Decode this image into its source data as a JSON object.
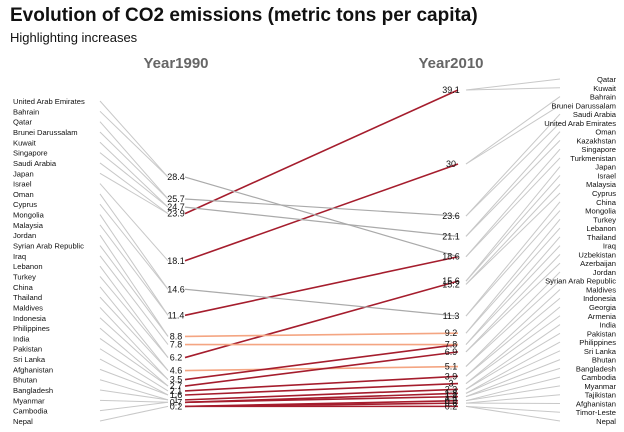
{
  "title": "Evolution of CO2 emissions (metric tons per capita)",
  "subtitle": "Highlighting increases",
  "chart_data": {
    "type": "slope",
    "title": "Evolution of CO2 emissions (metric tons per capita)",
    "subtitle": "Highlighting increases",
    "columns": [
      "Year1990",
      "Year2010"
    ],
    "ylim": [
      0,
      39.1
    ],
    "colors": {
      "decrease": "#c8c8c8",
      "increase_dark": "#a51d2d",
      "increase_light": "#f4a582",
      "decrease_strong": "#aaaaaa"
    },
    "left_value_labels": [
      "28.4",
      "25.7",
      "24.7",
      "23.9",
      "18.1",
      "14.6",
      "11.4",
      "8.8",
      "7.8",
      "6.2",
      "4.6",
      "3.5",
      "2.7",
      "2.1",
      "1.6",
      "1",
      "0.7",
      "0.2"
    ],
    "right_value_labels": [
      "39.1",
      "30",
      "23.6",
      "21.1",
      "18.6",
      "15.6",
      "15.2",
      "11.3",
      "9.2",
      "7.8",
      "6.9",
      "5.1",
      "3.9",
      "3",
      "2.3",
      "1.8",
      "1.4",
      "0.9",
      "0.6",
      "0.2"
    ],
    "left_countries": [
      "United Arab Emirates",
      "Bahrain",
      "Qatar",
      "Brunei Darussalam",
      "Kuwait",
      "Singapore",
      "Saudi Arabia",
      "Japan",
      "Israel",
      "Oman",
      "Cyprus",
      "Mongolia",
      "Malaysia",
      "Jordan",
      "Syrian Arab Republic",
      "Iraq",
      "Lebanon",
      "Turkey",
      "China",
      "Thailand",
      "Maldives",
      "Indonesia",
      "Philippines",
      "India",
      "Pakistan",
      "Sri Lanka",
      "Afghanistan",
      "Bhutan",
      "Bangladesh",
      "Myanmar",
      "Cambodia",
      "Nepal"
    ],
    "right_countries": [
      "Qatar",
      "Kuwait",
      "Bahrain",
      "Brunei Darussalam",
      "Saudi Arabia",
      "United Arab Emirates",
      "Oman",
      "Kazakhstan",
      "Singapore",
      "Turkmenistan",
      "Japan",
      "Israel",
      "Malaysia",
      "Cyprus",
      "China",
      "Mongolia",
      "Turkey",
      "Lebanon",
      "Thailand",
      "Iraq",
      "Uzbekistan",
      "Azerbaijan",
      "Jordan",
      "Syrian Arab Republic",
      "Maldives",
      "Indonesia",
      "Georgia",
      "Armenia",
      "India",
      "Pakistan",
      "Philippines",
      "Sri Lanka",
      "Bhutan",
      "Bangladesh",
      "Cambodia",
      "Myanmar",
      "Tajikistan",
      "Afghanistan",
      "Timor-Leste",
      "Nepal"
    ],
    "slopes": [
      {
        "from": 23.9,
        "to": 39.1,
        "trend": "increase"
      },
      {
        "from": 18.1,
        "to": 30,
        "trend": "increase"
      },
      {
        "from": 11.4,
        "to": 18.6,
        "trend": "increase"
      },
      {
        "from": 6.2,
        "to": 15.6,
        "trend": "increase"
      },
      {
        "from": 28.4,
        "to": 18.6,
        "trend": "decrease"
      },
      {
        "from": 25.7,
        "to": 23.6,
        "trend": "decrease"
      },
      {
        "from": 24.7,
        "to": 21.1,
        "trend": "decrease"
      },
      {
        "from": 14.6,
        "to": 11.3,
        "trend": "decrease"
      },
      {
        "from": 8.8,
        "to": 9.2,
        "trend": "increase_light"
      },
      {
        "from": 4.6,
        "to": 5.1,
        "trend": "increase_light"
      },
      {
        "from": 3.5,
        "to": 7.8,
        "trend": "increase"
      },
      {
        "from": 2.7,
        "to": 6.9,
        "trend": "increase"
      },
      {
        "from": 2.1,
        "to": 3.9,
        "trend": "increase"
      },
      {
        "from": 1.6,
        "to": 3,
        "trend": "increase"
      },
      {
        "from": 1,
        "to": 2.3,
        "trend": "increase"
      },
      {
        "from": 0.7,
        "to": 1.8,
        "trend": "increase"
      },
      {
        "from": 0.7,
        "to": 1.4,
        "trend": "increase"
      },
      {
        "from": 0.2,
        "to": 0.9,
        "trend": "increase"
      },
      {
        "from": 0.2,
        "to": 0.6,
        "trend": "increase"
      },
      {
        "from": 0.2,
        "to": 0.2,
        "trend": "increase"
      },
      {
        "from": 7.8,
        "to": 7.8,
        "trend": "increase_light"
      }
    ]
  }
}
